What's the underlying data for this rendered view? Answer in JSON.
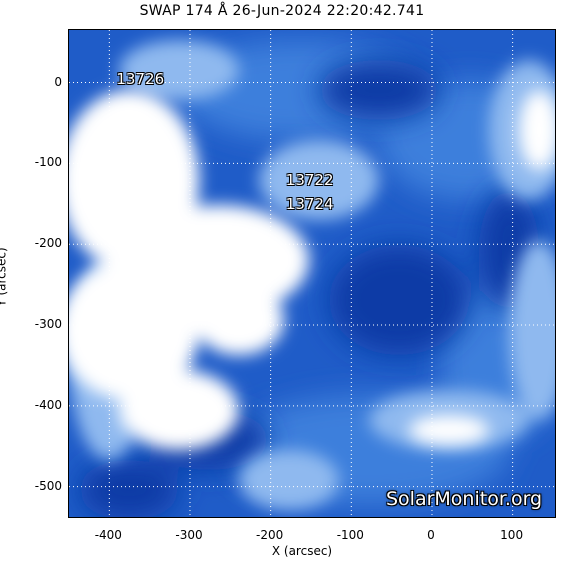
{
  "title": "SWAP 174 Å 26-Jun-2024 22:20:42.741",
  "axes": {
    "xlabel": "X (arcsec)",
    "ylabel": "Y (arcsec)",
    "xticks": [
      "-400",
      "-300",
      "-200",
      "-100",
      "0",
      "100"
    ],
    "yticks": [
      "0",
      "-100",
      "-200",
      "-300",
      "-400",
      "-500"
    ],
    "xrange": [
      -450,
      155
    ],
    "yrange": [
      -540,
      65
    ],
    "grid": "dotted-white"
  },
  "regions": [
    {
      "label": "13726",
      "x": -390,
      "y": 0
    },
    {
      "label": "13722",
      "x": -180,
      "y": -125
    },
    {
      "label": "13724",
      "x": -180,
      "y": -155
    }
  ],
  "watermark": "SolarMonitor.org",
  "colors": {
    "deep": "#0a3aa8",
    "mid": "#2c6fd6",
    "light": "#8fb9ef",
    "bright": "#ffffff",
    "grid": "#ffffff"
  }
}
